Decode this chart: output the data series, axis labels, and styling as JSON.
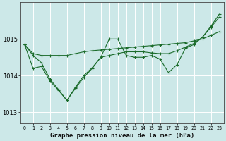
{
  "title": "Graphe pression niveau de la mer (hPa)",
  "bg_color": "#cce8e8",
  "grid_color": "#ffffff",
  "line_color": "#1a6b2a",
  "x_labels": [
    "0",
    "1",
    "2",
    "3",
    "4",
    "5",
    "6",
    "7",
    "8",
    "9",
    "10",
    "11",
    "12",
    "13",
    "14",
    "15",
    "16",
    "17",
    "18",
    "19",
    "20",
    "21",
    "22",
    "23"
  ],
  "x_values": [
    0,
    1,
    2,
    3,
    4,
    5,
    6,
    7,
    8,
    9,
    10,
    11,
    12,
    13,
    14,
    15,
    16,
    17,
    18,
    19,
    20,
    21,
    22,
    23
  ],
  "ylim": [
    1012.7,
    1016.0
  ],
  "yticks": [
    1013,
    1014,
    1015
  ],
  "series": [
    [
      1014.85,
      1014.6,
      1014.55,
      1014.55,
      1014.55,
      1014.55,
      1014.6,
      1014.65,
      1014.68,
      1014.7,
      1014.72,
      1014.74,
      1014.76,
      1014.78,
      1014.8,
      1014.82,
      1014.84,
      1014.86,
      1014.88,
      1014.9,
      1014.95,
      1015.0,
      1015.1,
      1015.2
    ],
    [
      1014.85,
      1014.2,
      1014.25,
      1013.85,
      1013.6,
      1013.32,
      1013.65,
      1013.95,
      1014.2,
      1014.5,
      1015.0,
      1015.0,
      1014.55,
      1014.5,
      1014.5,
      1014.55,
      1014.45,
      1014.08,
      1014.3,
      1014.75,
      1014.85,
      1015.05,
      1015.35,
      1015.68
    ],
    [
      1014.85,
      1014.55,
      1014.35,
      1013.9,
      1013.62,
      1013.32,
      1013.68,
      1014.0,
      1014.22,
      1014.5,
      1014.55,
      1014.6,
      1014.65,
      1014.65,
      1014.65,
      1014.62,
      1014.6,
      1014.6,
      1014.68,
      1014.78,
      1014.88,
      1015.05,
      1015.32,
      1015.6
    ]
  ]
}
